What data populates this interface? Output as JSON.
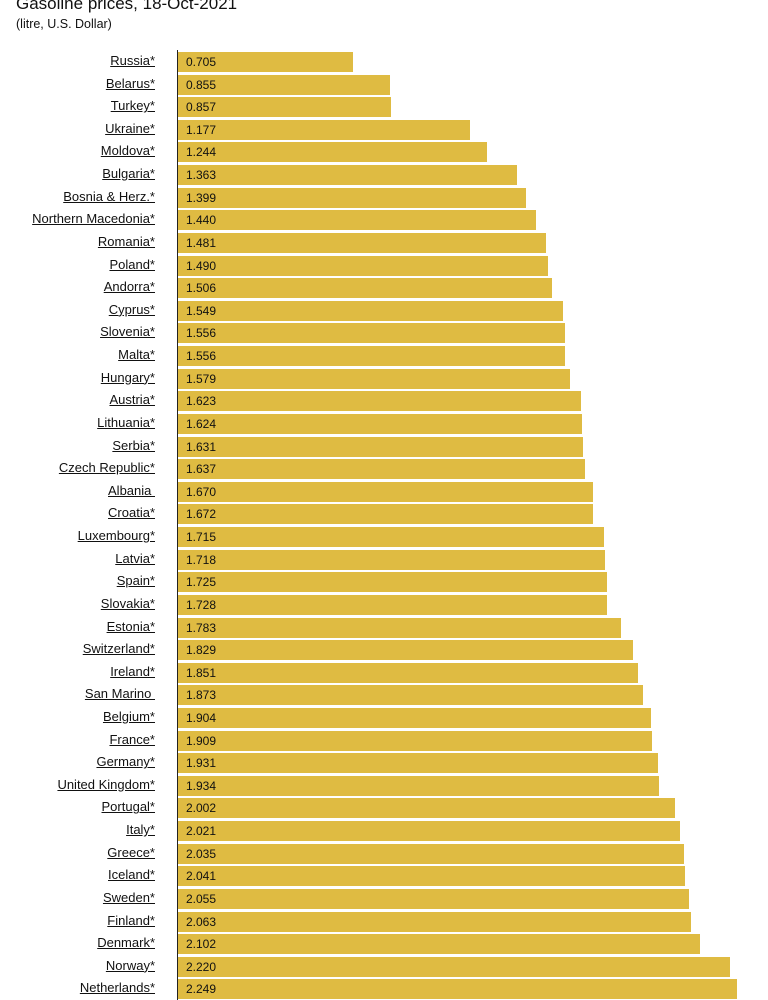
{
  "chart_data": {
    "type": "bar",
    "orientation": "horizontal",
    "title": "Gasoline prices, 18-Oct-2021",
    "subtitle": "(litre, U.S. Dollar)",
    "bar_color": "#dfbb42",
    "xlim": [
      0,
      2.249
    ],
    "grid": false,
    "categories": [
      "Russia*",
      "Belarus*",
      "Turkey*",
      "Ukraine*",
      "Moldova*",
      "Bulgaria*",
      "Bosnia & Herz.*",
      "Northern Macedonia*",
      "Romania*",
      "Poland*",
      "Andorra*",
      "Cyprus*",
      "Slovenia*",
      "Malta*",
      "Hungary*",
      "Austria*",
      "Lithuania*",
      "Serbia*",
      "Czech Republic*",
      "Albania ",
      "Croatia*",
      "Luxembourg*",
      "Latvia*",
      "Spain*",
      "Slovakia*",
      "Estonia*",
      "Switzerland*",
      "Ireland*",
      "San Marino ",
      "Belgium*",
      "France*",
      "Germany*",
      "United Kingdom*",
      "Portugal*",
      "Italy*",
      "Greece*",
      "Iceland*",
      "Sweden*",
      "Finland*",
      "Denmark*",
      "Norway*",
      "Netherlands*"
    ],
    "values": [
      "0.705",
      "0.855",
      "0.857",
      "1.177",
      "1.244",
      "1.363",
      "1.399",
      "1.440",
      "1.481",
      "1.490",
      "1.506",
      "1.549",
      "1.556",
      "1.556",
      "1.579",
      "1.623",
      "1.624",
      "1.631",
      "1.637",
      "1.670",
      "1.672",
      "1.715",
      "1.718",
      "1.725",
      "1.728",
      "1.783",
      "1.829",
      "1.851",
      "1.873",
      "1.904",
      "1.909",
      "1.931",
      "1.934",
      "2.002",
      "2.021",
      "2.035",
      "2.041",
      "2.055",
      "2.063",
      "2.102",
      "2.220",
      "2.249"
    ]
  }
}
